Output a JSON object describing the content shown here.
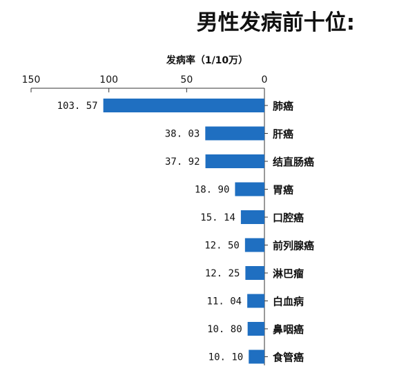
{
  "chart_data": {
    "type": "bar",
    "orientation": "horizontal",
    "title": "男性发病前十位:",
    "xlabel": "发病率（1/10万）",
    "ylabel": "",
    "xlim": [
      0,
      150
    ],
    "x_direction": "reversed",
    "x_ticks": [
      150,
      100,
      50,
      0
    ],
    "x_tick_labels": [
      "150",
      "100",
      "50",
      "0"
    ],
    "grid": false,
    "bar_color": "#1f6fc1",
    "categories": [
      "肺癌",
      "肝癌",
      "结直肠癌",
      "胃癌",
      "口腔癌",
      "前列腺癌",
      "淋巴瘤",
      "白血病",
      "鼻咽癌",
      "食管癌"
    ],
    "values": [
      103.57,
      38.03,
      37.92,
      18.9,
      15.14,
      12.5,
      12.25,
      11.04,
      10.8,
      10.1
    ],
    "value_labels": [
      "103. 57",
      "38. 03",
      "37. 92",
      "18. 90",
      "15. 14",
      "12. 50",
      "12. 25",
      "11. 04",
      "10. 80",
      "10. 10"
    ]
  }
}
